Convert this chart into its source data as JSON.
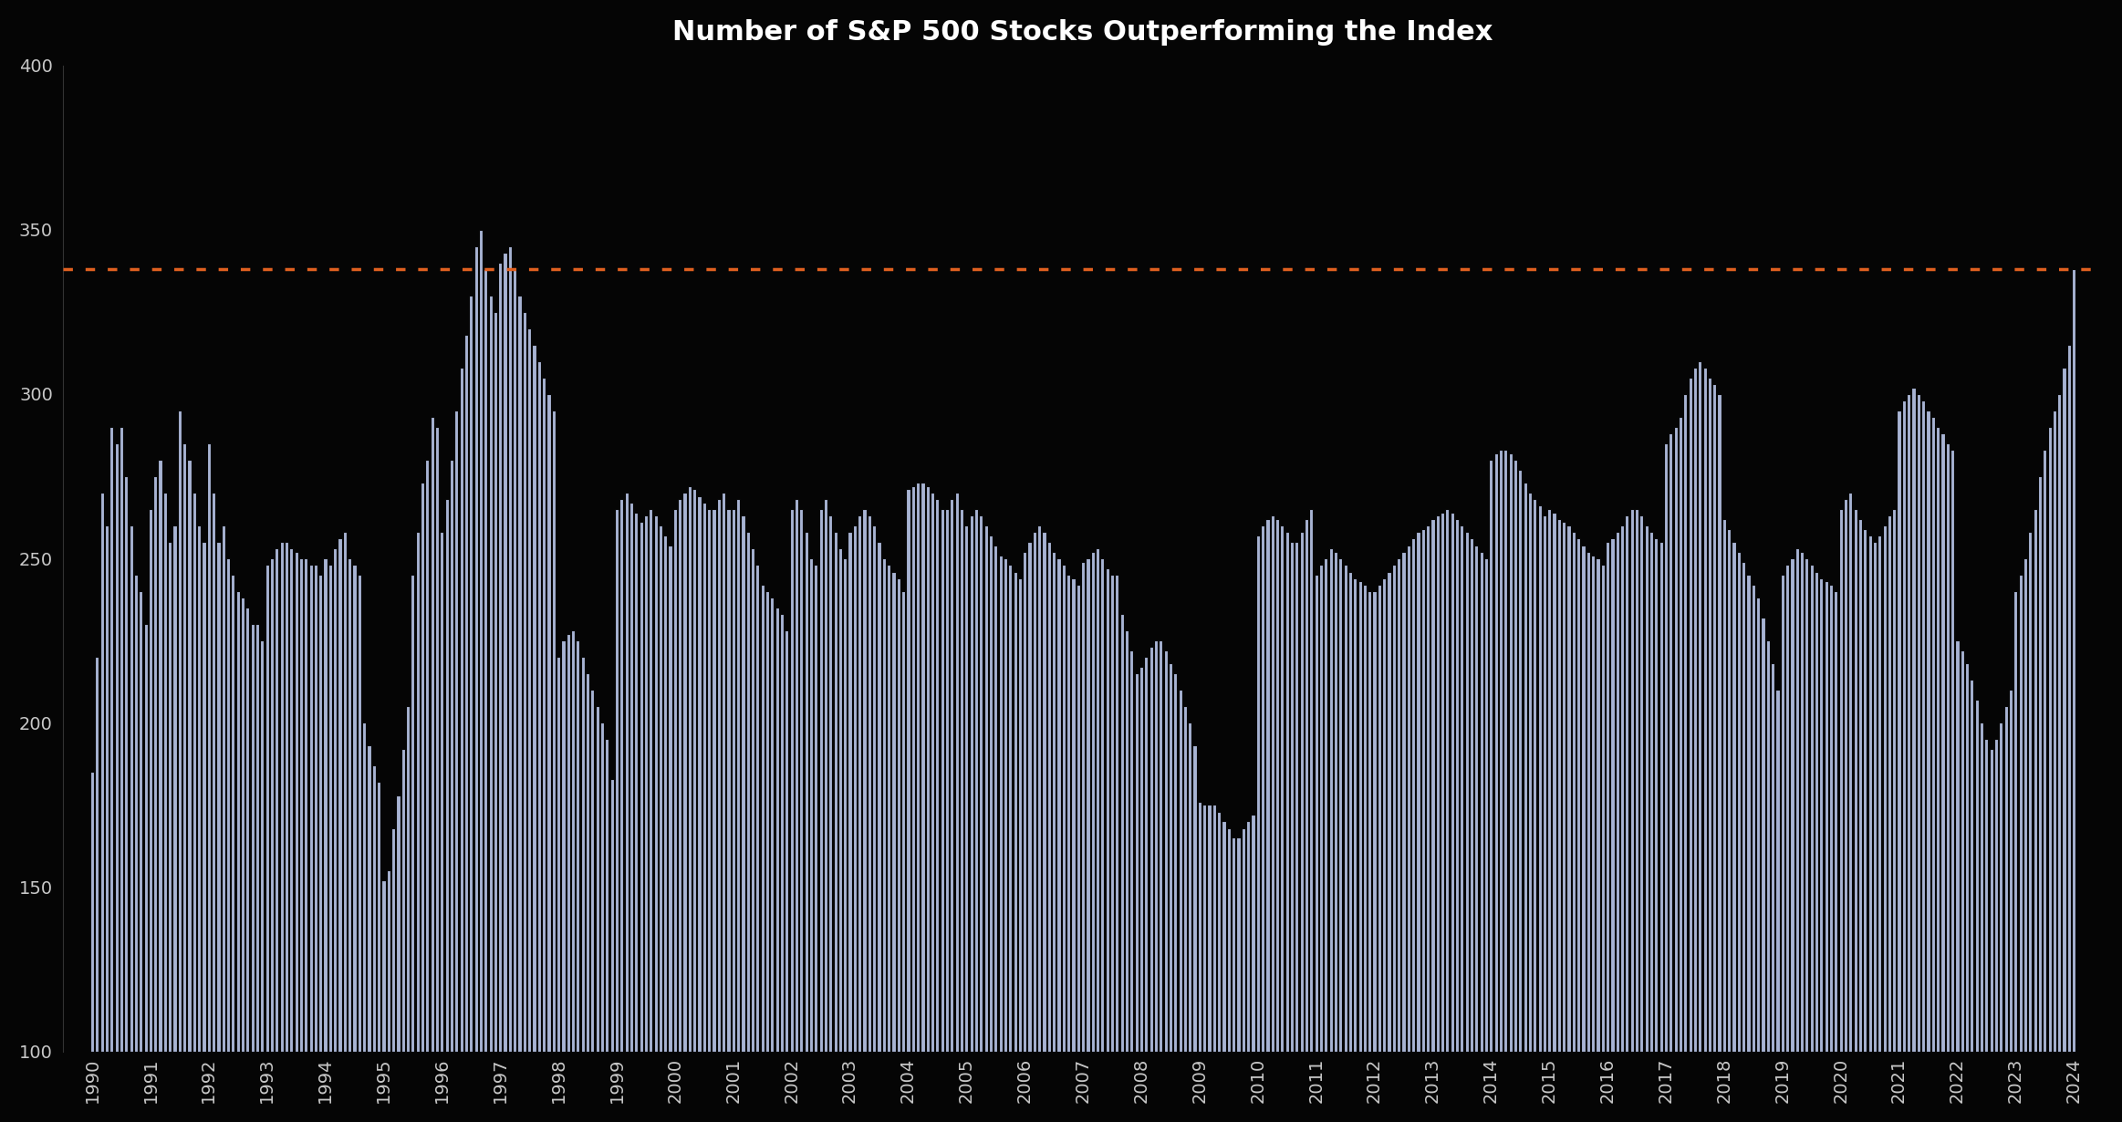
{
  "title": "Number of S&P 500 Stocks Outperforming the Index",
  "background_color": "#050505",
  "bar_color": "#a8b4d4",
  "dotted_line_color": "#e06020",
  "dotted_line_value": 338,
  "title_color": "#ffffff",
  "tick_color": "#c8c8c8",
  "ylim": [
    100,
    400
  ],
  "yticks": [
    100,
    150,
    200,
    250,
    300,
    350,
    400
  ],
  "bar_bottom": 100,
  "years": [
    1990,
    1991,
    1992,
    1993,
    1994,
    1995,
    1996,
    1997,
    1998,
    1999,
    2000,
    2001,
    2002,
    2003,
    2004,
    2005,
    2006,
    2007,
    2008,
    2009,
    2010,
    2011,
    2012,
    2013,
    2014,
    2015,
    2016,
    2017,
    2018,
    2019,
    2020,
    2021,
    2022,
    2023,
    2024
  ],
  "monthly_values": [
    185,
    220,
    270,
    260,
    290,
    285,
    290,
    275,
    260,
    245,
    240,
    230,
    265,
    275,
    280,
    270,
    255,
    260,
    295,
    285,
    280,
    270,
    260,
    255,
    285,
    270,
    255,
    260,
    250,
    245,
    240,
    238,
    235,
    230,
    230,
    225,
    248,
    250,
    253,
    255,
    255,
    253,
    252,
    250,
    250,
    248,
    248,
    245,
    250,
    248,
    253,
    256,
    258,
    250,
    248,
    245,
    200,
    193,
    187,
    182,
    152,
    155,
    168,
    178,
    192,
    205,
    245,
    258,
    273,
    280,
    293,
    290,
    258,
    268,
    280,
    295,
    308,
    318,
    330,
    345,
    350,
    338,
    330,
    325,
    340,
    343,
    345,
    338,
    330,
    325,
    320,
    315,
    310,
    305,
    300,
    295,
    220,
    225,
    227,
    228,
    225,
    220,
    215,
    210,
    205,
    200,
    195,
    183,
    265,
    268,
    270,
    267,
    264,
    261,
    263,
    265,
    263,
    260,
    257,
    254,
    265,
    268,
    270,
    272,
    271,
    269,
    267,
    265,
    265,
    268,
    270,
    265,
    265,
    268,
    263,
    258,
    253,
    248,
    242,
    240,
    238,
    235,
    233,
    228,
    265,
    268,
    265,
    258,
    250,
    248,
    265,
    268,
    263,
    258,
    253,
    250,
    258,
    260,
    263,
    265,
    263,
    260,
    255,
    250,
    248,
    246,
    244,
    240,
    271,
    272,
    273,
    273,
    272,
    270,
    268,
    265,
    265,
    268,
    270,
    265,
    260,
    263,
    265,
    263,
    260,
    257,
    254,
    251,
    250,
    248,
    246,
    244,
    252,
    255,
    258,
    260,
    258,
    255,
    252,
    250,
    248,
    245,
    244,
    242,
    249,
    250,
    252,
    253,
    250,
    247,
    245,
    245,
    233,
    228,
    222,
    215,
    217,
    220,
    223,
    225,
    225,
    222,
    218,
    215,
    210,
    205,
    200,
    193,
    176,
    175,
    175,
    175,
    173,
    170,
    168,
    165,
    165,
    168,
    170,
    172,
    257,
    260,
    262,
    263,
    262,
    260,
    258,
    255,
    255,
    258,
    262,
    265,
    245,
    248,
    250,
    253,
    252,
    250,
    248,
    246,
    244,
    243,
    242,
    240,
    240,
    242,
    244,
    246,
    248,
    250,
    252,
    254,
    256,
    258,
    259,
    260,
    262,
    263,
    264,
    265,
    264,
    262,
    260,
    258,
    256,
    254,
    252,
    250,
    280,
    282,
    283,
    283,
    282,
    280,
    277,
    273,
    270,
    268,
    266,
    263,
    265,
    264,
    262,
    261,
    260,
    258,
    256,
    254,
    252,
    251,
    250,
    248,
    255,
    256,
    258,
    260,
    263,
    265,
    265,
    263,
    260,
    258,
    256,
    255,
    285,
    288,
    290,
    293,
    300,
    305,
    308,
    310,
    308,
    305,
    303,
    300,
    262,
    259,
    255,
    252,
    249,
    245,
    242,
    238,
    232,
    225,
    218,
    210,
    245,
    248,
    250,
    253,
    252,
    250,
    248,
    246,
    244,
    243,
    242,
    240,
    265,
    268,
    270,
    265,
    262,
    259,
    257,
    255,
    257,
    260,
    263,
    265,
    295,
    298,
    300,
    302,
    300,
    298,
    295,
    293,
    290,
    288,
    285,
    283,
    225,
    222,
    218,
    213,
    207,
    200,
    195,
    192,
    195,
    200,
    205,
    210,
    240,
    245,
    250,
    258,
    265,
    275,
    283,
    290,
    295,
    300,
    308,
    315,
    338
  ]
}
